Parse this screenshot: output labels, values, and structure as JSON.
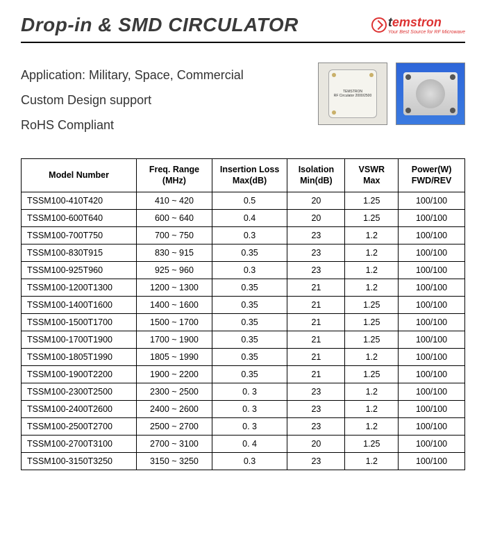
{
  "header": {
    "title": "Drop-in & SMD CIRCULATOR",
    "logo_word_red": "emstron",
    "logo_word_t": "t",
    "logo_tagline": "Your Best Source for RF Microwave"
  },
  "intro": {
    "line1": "Application: Military, Space, Commercial",
    "line2": "Custom Design support",
    "line3": "RoHS Compliant",
    "chip_label1": "TEMSTRON",
    "chip_label2": "RF Circulator 2000/2500"
  },
  "table": {
    "headers": {
      "model": "Model Number",
      "freq": "Freq. Range\n(MHz)",
      "il": "Insertion Loss\nMax(dB)",
      "iso": "Isolation\nMin(dB)",
      "vswr": "VSWR\nMax",
      "power": "Power(W)\nFWD/REV"
    },
    "rows": [
      {
        "model": "TSSM100-410T420",
        "freq": "410 ~ 420",
        "il": "0.5",
        "iso": "20",
        "vswr": "1.25",
        "power": "100/100"
      },
      {
        "model": "TSSM100-600T640",
        "freq": "600 ~ 640",
        "il": "0.4",
        "iso": "20",
        "vswr": "1.25",
        "power": "100/100"
      },
      {
        "model": "TSSM100-700T750",
        "freq": "700 ~ 750",
        "il": "0.3",
        "iso": "23",
        "vswr": "1.2",
        "power": "100/100"
      },
      {
        "model": "TSSM100-830T915",
        "freq": "830 ~ 915",
        "il": "0.35",
        "iso": "23",
        "vswr": "1.2",
        "power": "100/100"
      },
      {
        "model": "TSSM100-925T960",
        "freq": "925 ~ 960",
        "il": "0.3",
        "iso": "23",
        "vswr": "1.2",
        "power": "100/100"
      },
      {
        "model": "TSSM100-1200T1300",
        "freq": "1200 ~ 1300",
        "il": "0.35",
        "iso": "21",
        "vswr": "1.2",
        "power": "100/100"
      },
      {
        "model": "TSSM100-1400T1600",
        "freq": "1400 ~ 1600",
        "il": "0.35",
        "iso": "21",
        "vswr": "1.25",
        "power": "100/100"
      },
      {
        "model": "TSSM100-1500T1700",
        "freq": "1500 ~ 1700",
        "il": "0.35",
        "iso": "21",
        "vswr": "1.25",
        "power": "100/100"
      },
      {
        "model": "TSSM100-1700T1900",
        "freq": "1700 ~ 1900",
        "il": "0.35",
        "iso": "21",
        "vswr": "1.25",
        "power": "100/100"
      },
      {
        "model": "TSSM100-1805T1990",
        "freq": "1805 ~ 1990",
        "il": "0.35",
        "iso": "21",
        "vswr": "1.2",
        "power": "100/100"
      },
      {
        "model": "TSSM100-1900T2200",
        "freq": "1900 ~ 2200",
        "il": "0.35",
        "iso": "21",
        "vswr": "1.25",
        "power": "100/100"
      },
      {
        "model": "TSSM100-2300T2500",
        "freq": "2300 ~ 2500",
        "il": "0. 3",
        "iso": "23",
        "vswr": "1.2",
        "power": "100/100"
      },
      {
        "model": "TSSM100-2400T2600",
        "freq": "2400 ~ 2600",
        "il": "0. 3",
        "iso": "23",
        "vswr": "1.2",
        "power": "100/100"
      },
      {
        "model": "TSSM100-2500T2700",
        "freq": "2500 ~ 2700",
        "il": "0. 3",
        "iso": "23",
        "vswr": "1.2",
        "power": "100/100"
      },
      {
        "model": "TSSM100-2700T3100",
        "freq": "2700 ~ 3100",
        "il": "0. 4",
        "iso": "20",
        "vswr": "1.25",
        "power": "100/100"
      },
      {
        "model": "TSSM100-3150T3250",
        "freq": "3150 ~ 3250",
        "il": "0.3",
        "iso": "23",
        "vswr": "1.2",
        "power": "100/100"
      }
    ]
  }
}
